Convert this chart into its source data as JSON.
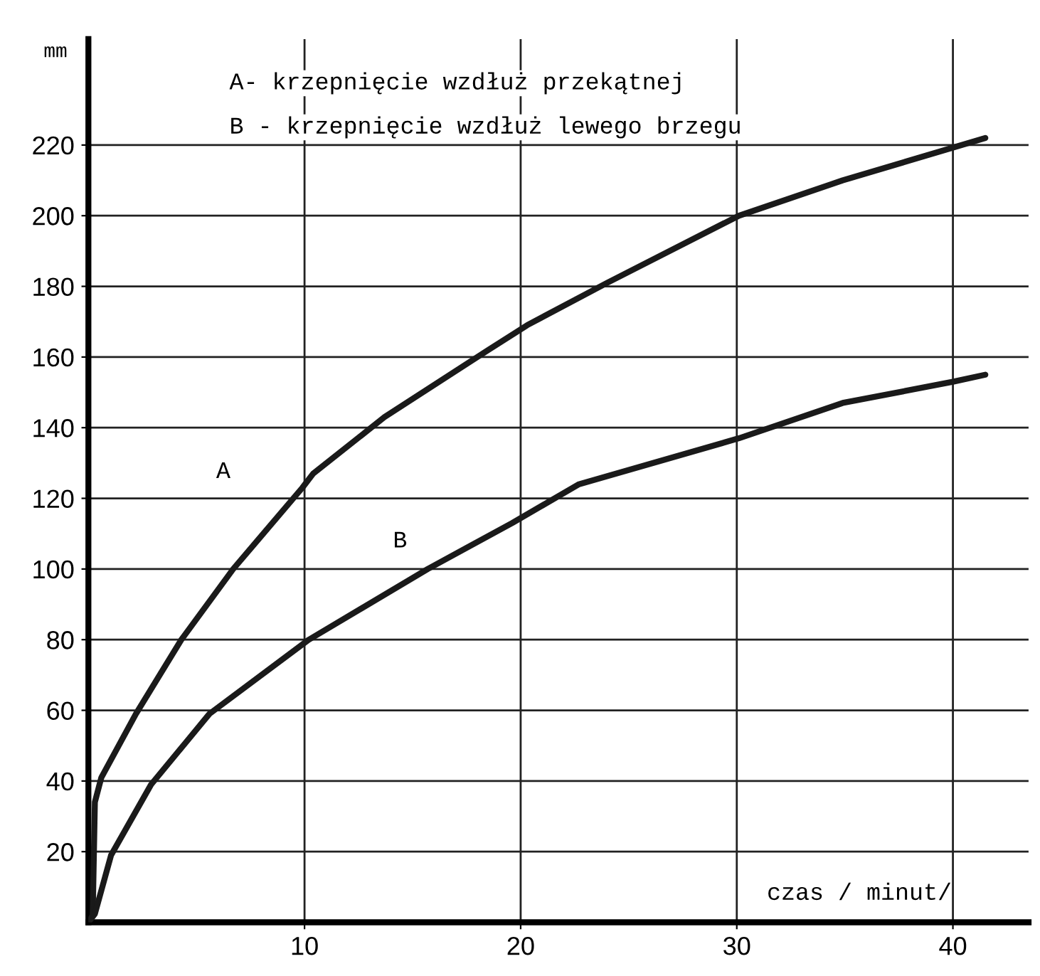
{
  "chart_data": {
    "type": "line",
    "xlabel": "czas / minut/",
    "ylabel": "mm",
    "annotations": [
      "A- krzepnięcie wzdłuż przekątnej",
      "B - krzepnięcie wzdłuż lewego brzegu"
    ],
    "xlim": [
      0,
      43.5
    ],
    "ylim": [
      0,
      250
    ],
    "xticks": [
      10,
      20,
      30,
      40
    ],
    "yticks": [
      20,
      40,
      60,
      80,
      100,
      120,
      140,
      160,
      180,
      200,
      220
    ],
    "grid": true,
    "marker": "none",
    "line_style": "solid",
    "series": [
      {
        "name": "A",
        "color": "#1a1a1a",
        "x": [
          0,
          0.2,
          0.3,
          0.6,
          2.2,
          4.3,
          6.7,
          9.9,
          10.4,
          13.7,
          18.5,
          20.3,
          24,
          30.1,
          34.9,
          41.5
        ],
        "values": [
          0,
          2,
          34,
          41,
          59,
          80,
          100,
          123,
          127,
          143,
          162,
          169,
          181,
          200,
          210,
          222
        ]
      },
      {
        "name": "B",
        "color": "#1a1a1a",
        "x": [
          0,
          0.3,
          1.05,
          2.9,
          5.6,
          10.2,
          15.7,
          19.6,
          22.7,
          30.1,
          34.9,
          40,
          41.5
        ],
        "values": [
          0,
          2.4,
          19,
          39,
          59,
          80,
          100,
          113,
          124,
          137,
          147,
          153,
          155
        ]
      }
    ]
  }
}
